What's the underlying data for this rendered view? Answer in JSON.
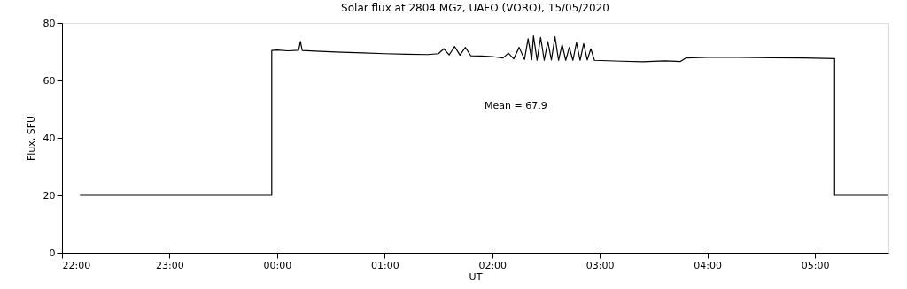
{
  "chart_data": {
    "type": "line",
    "title": "Solar flux at 2804 MGz, UAFO (VORO),  15/05/2020",
    "xlabel": "UT",
    "ylabel": "Flux, SFU",
    "annotations": [
      "Mean =   67.9"
    ],
    "xlim": [
      "2020-05-14T22:00",
      "2020-05-15T05:41"
    ],
    "ylim": [
      0,
      80
    ],
    "xticks": [
      {
        "value": "2020-05-14T22:00",
        "label": "22:00"
      },
      {
        "value": "2020-05-14T23:00",
        "label": "23:00"
      },
      {
        "value": "2020-05-15T00:00",
        "label": "00:00"
      },
      {
        "value": "2020-05-15T01:00",
        "label": "01:00"
      },
      {
        "value": "2020-05-15T02:00",
        "label": "02:00"
      },
      {
        "value": "2020-05-15T03:00",
        "label": "03:00"
      },
      {
        "value": "2020-05-15T04:00",
        "label": "04:00"
      },
      {
        "value": "2020-05-15T05:00",
        "label": "05:00"
      }
    ],
    "yticks": [
      0,
      20,
      40,
      60,
      80
    ],
    "grid": false,
    "legend": false,
    "marker": "none",
    "line_style": "solid",
    "series": [
      {
        "color": "#000000",
        "x": [
          "2020-05-14T22:10",
          "2020-05-14T23:57",
          "2020-05-14T23:57",
          "2020-05-15T00:00",
          "2020-05-15T00:06",
          "2020-05-15T00:12",
          "2020-05-15T00:13",
          "2020-05-15T00:14",
          "2020-05-15T00:24",
          "2020-05-15T00:36",
          "2020-05-15T00:48",
          "2020-05-15T01:00",
          "2020-05-15T01:12",
          "2020-05-15T01:24",
          "2020-05-15T01:30",
          "2020-05-15T01:33",
          "2020-05-15T01:36",
          "2020-05-15T01:39",
          "2020-05-15T01:42",
          "2020-05-15T01:45",
          "2020-05-15T01:48",
          "2020-05-15T01:54",
          "2020-05-15T02:00",
          "2020-05-15T02:06",
          "2020-05-15T02:09",
          "2020-05-15T02:12",
          "2020-05-15T02:15",
          "2020-05-15T02:18",
          "2020-05-15T02:20",
          "2020-05-15T02:22",
          "2020-05-15T02:23",
          "2020-05-15T02:25",
          "2020-05-15T02:27",
          "2020-05-15T02:29",
          "2020-05-15T02:31",
          "2020-05-15T02:33",
          "2020-05-15T02:35",
          "2020-05-15T02:37",
          "2020-05-15T02:39",
          "2020-05-15T02:41",
          "2020-05-15T02:43",
          "2020-05-15T02:45",
          "2020-05-15T02:47",
          "2020-05-15T02:49",
          "2020-05-15T02:51",
          "2020-05-15T02:53",
          "2020-05-15T02:55",
          "2020-05-15T02:57",
          "2020-05-15T03:12",
          "2020-05-15T03:24",
          "2020-05-15T03:36",
          "2020-05-15T03:45",
          "2020-05-15T03:48",
          "2020-05-15T04:00",
          "2020-05-15T04:18",
          "2020-05-15T04:36",
          "2020-05-15T04:54",
          "2020-05-15T05:11",
          "2020-05-15T05:11",
          "2020-05-15T05:41"
        ],
        "values": [
          20,
          20,
          70.4,
          70.6,
          70.3,
          70.5,
          73.6,
          70.4,
          70.1,
          69.8,
          69.6,
          69.3,
          69.1,
          69.0,
          69.3,
          71.0,
          68.9,
          71.8,
          68.8,
          71.5,
          68.6,
          68.5,
          68.3,
          67.8,
          69.5,
          67.5,
          71.5,
          67.3,
          74.5,
          67.2,
          75.5,
          67.0,
          75.0,
          67.0,
          73.5,
          67.1,
          75.2,
          67.0,
          72.5,
          67.0,
          71.5,
          67.0,
          73.2,
          67.0,
          72.8,
          67.1,
          71.0,
          67.0,
          66.7,
          66.5,
          66.8,
          66.6,
          67.8,
          68.0,
          68.0,
          67.9,
          67.8,
          67.6,
          20,
          20
        ]
      }
    ]
  }
}
